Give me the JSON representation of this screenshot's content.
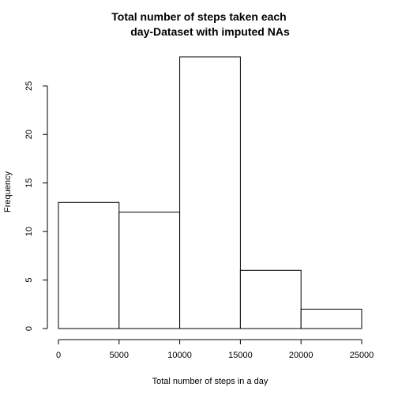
{
  "chart_data": {
    "type": "bar",
    "title_lines": [
      "Total number of steps taken each",
      "day-Dataset with imputed NAs"
    ],
    "xlabel": "Total number of steps in a day",
    "ylabel": "Frequency",
    "bins": [
      {
        "from": 0,
        "to": 5000,
        "count": 13
      },
      {
        "from": 5000,
        "to": 10000,
        "count": 12
      },
      {
        "from": 10000,
        "to": 15000,
        "count": 28
      },
      {
        "from": 15000,
        "to": 20000,
        "count": 6
      },
      {
        "from": 20000,
        "to": 25000,
        "count": 2
      }
    ],
    "xlim": [
      0,
      25000
    ],
    "ylim": [
      0,
      28
    ],
    "x_ticks": [
      0,
      5000,
      10000,
      15000,
      20000,
      25000
    ],
    "y_ticks": [
      0,
      5,
      10,
      15,
      20,
      25
    ],
    "grid": false,
    "legend": "none",
    "colors": {
      "bar_fill": "#ffffff",
      "bar_stroke": "#000000"
    }
  }
}
